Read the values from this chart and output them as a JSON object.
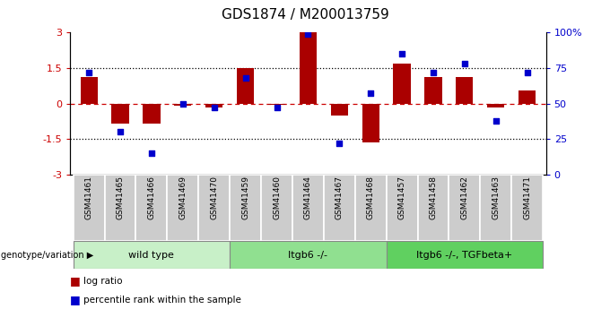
{
  "title": "GDS1874 / M200013759",
  "samples": [
    "GSM41461",
    "GSM41465",
    "GSM41466",
    "GSM41469",
    "GSM41470",
    "GSM41459",
    "GSM41460",
    "GSM41464",
    "GSM41467",
    "GSM41468",
    "GSM41457",
    "GSM41458",
    "GSM41462",
    "GSM41463",
    "GSM41471"
  ],
  "log_ratios": [
    1.1,
    -0.85,
    -0.85,
    -0.08,
    -0.18,
    1.5,
    -0.05,
    3.0,
    -0.5,
    -1.65,
    1.7,
    1.1,
    1.1,
    -0.15,
    0.55
  ],
  "percentile_ranks": [
    72,
    30,
    15,
    50,
    47,
    68,
    47,
    99,
    22,
    57,
    85,
    72,
    78,
    38,
    72
  ],
  "groups": [
    {
      "label": "wild type",
      "start": 0,
      "end": 5,
      "color": "#c8f0c8"
    },
    {
      "label": "Itgb6 -/-",
      "start": 5,
      "end": 10,
      "color": "#90e090"
    },
    {
      "label": "Itgb6 -/-, TGFbeta+",
      "start": 10,
      "end": 15,
      "color": "#60d060"
    }
  ],
  "bar_color": "#aa0000",
  "dot_color": "#0000cc",
  "ylim_left": [
    -3,
    3
  ],
  "ylim_right": [
    0,
    100
  ],
  "yticks_left": [
    -3,
    -1.5,
    0,
    1.5,
    3
  ],
  "ytick_labels_left": [
    "-3",
    "-1.5",
    "0",
    "1.5",
    "3"
  ],
  "yticks_right": [
    0,
    25,
    50,
    75,
    100
  ],
  "ytick_labels_right": [
    "0",
    "25",
    "50",
    "75",
    "100%"
  ],
  "hline_dotted": [
    -1.5,
    1.5
  ],
  "hline_zero_color": "#cc0000",
  "legend_items": [
    {
      "label": "log ratio",
      "color": "#aa0000"
    },
    {
      "label": "percentile rank within the sample",
      "color": "#0000cc"
    }
  ],
  "group_label": "genotype/variation",
  "cell_bg_color": "#cccccc",
  "plot_bg": "#ffffff"
}
